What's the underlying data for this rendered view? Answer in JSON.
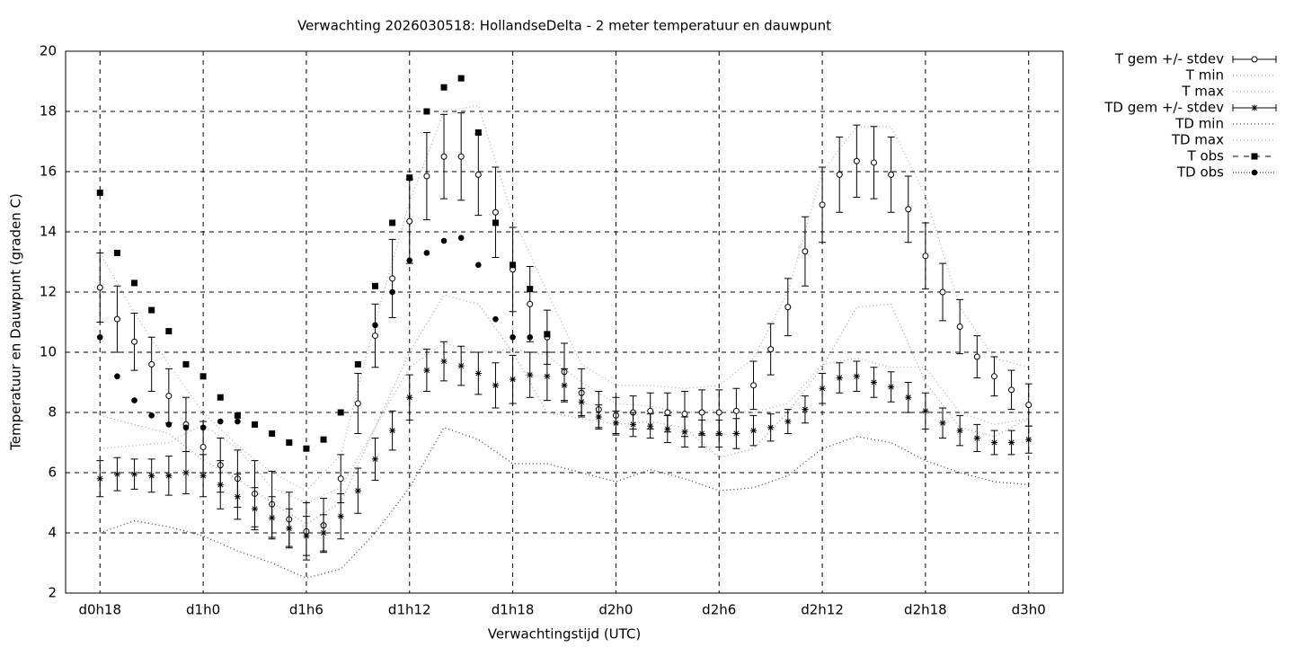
{
  "chart_data": {
    "type": "errorbar",
    "title": "Verwachting 2026030518: HollandseDelta - 2 meter temperatuur en dauwpunt",
    "xlabel": "Verwachtingstijd (UTC)",
    "ylabel": "Temperatuur en Dauwpunt (graden C)",
    "xlim": [
      16,
      74
    ],
    "ylim": [
      2,
      20
    ],
    "xticks": [
      {
        "value": 18,
        "label": "d0h18"
      },
      {
        "value": 24,
        "label": "d1h0"
      },
      {
        "value": 30,
        "label": "d1h6"
      },
      {
        "value": 36,
        "label": "d1h12"
      },
      {
        "value": 42,
        "label": "d1h18"
      },
      {
        "value": 48,
        "label": "d2h0"
      },
      {
        "value": 54,
        "label": "d2h6"
      },
      {
        "value": 60,
        "label": "d2h12"
      },
      {
        "value": 66,
        "label": "d2h18"
      },
      {
        "value": 72,
        "label": "d3h0"
      }
    ],
    "yticks": [
      2,
      4,
      6,
      8,
      10,
      12,
      14,
      16,
      18,
      20
    ],
    "grid": true,
    "legend": "outside-right",
    "series": [
      {
        "name": "T gem +/- stdev",
        "kind": "errorbar",
        "marker": "open-circle",
        "color": "#000000",
        "x": [
          18,
          19,
          20,
          21,
          22,
          23,
          24,
          25,
          26,
          27,
          28,
          29,
          30,
          31,
          32,
          33,
          34,
          35,
          36,
          37,
          38,
          39,
          40,
          41,
          42,
          43,
          44,
          45,
          46,
          47,
          48,
          49,
          50,
          51,
          52,
          53,
          54,
          55,
          56,
          57,
          58,
          59,
          60,
          61,
          62,
          63,
          64,
          65,
          66,
          67,
          68,
          69,
          70,
          71,
          72
        ],
        "values": [
          12.15,
          11.1,
          10.35,
          9.6,
          8.55,
          7.6,
          6.85,
          6.25,
          5.8,
          5.3,
          4.95,
          4.45,
          4.05,
          4.25,
          5.8,
          8.3,
          10.55,
          12.45,
          14.35,
          15.85,
          16.5,
          16.5,
          15.9,
          14.65,
          12.75,
          11.6,
          10.5,
          9.35,
          8.65,
          8.1,
          7.9,
          8.0,
          8.05,
          8.0,
          7.95,
          8.0,
          8.0,
          8.05,
          8.9,
          10.1,
          11.5,
          13.35,
          14.9,
          15.9,
          16.35,
          16.3,
          15.9,
          14.75,
          13.2,
          12.0,
          10.85,
          9.85,
          9.2,
          8.75,
          8.25
        ],
        "errors": [
          1.15,
          1.1,
          0.95,
          0.9,
          0.9,
          0.9,
          0.85,
          0.9,
          0.95,
          1.1,
          1.1,
          0.9,
          0.95,
          0.9,
          0.8,
          1.0,
          1.05,
          1.3,
          1.4,
          1.45,
          1.4,
          1.45,
          1.35,
          1.5,
          1.4,
          1.25,
          0.9,
          0.95,
          0.8,
          0.6,
          0.6,
          0.55,
          0.6,
          0.65,
          0.75,
          0.75,
          0.75,
          0.75,
          0.8,
          0.85,
          0.95,
          1.15,
          1.25,
          1.25,
          1.2,
          1.2,
          1.25,
          1.1,
          1.1,
          0.95,
          0.9,
          0.7,
          0.65,
          0.65,
          0.7
        ]
      },
      {
        "name": "T min",
        "kind": "line",
        "color": "#a0a0a0",
        "x": [
          18,
          20,
          22,
          24,
          26,
          28,
          30,
          32,
          34,
          36,
          38,
          40,
          42,
          44,
          46,
          48,
          50,
          52,
          54,
          56,
          58,
          60,
          62,
          64,
          66,
          68,
          70,
          72
        ],
        "values": [
          7.9,
          7.6,
          7.3,
          6.4,
          5.8,
          5.0,
          4.3,
          5.0,
          7.5,
          10.0,
          11.9,
          11.6,
          10.0,
          8.0,
          7.8,
          7.6,
          7.7,
          7.5,
          6.5,
          6.8,
          8.0,
          9.5,
          11.5,
          11.6,
          9.0,
          7.5,
          7.2,
          7.8
        ]
      },
      {
        "name": "T max",
        "kind": "line",
        "color": "#b0b0b0",
        "x": [
          18,
          20,
          22,
          24,
          26,
          28,
          30,
          32,
          34,
          36,
          38,
          40,
          42,
          44,
          46,
          48,
          50,
          52,
          54,
          56,
          58,
          60,
          62,
          64,
          66,
          68,
          70,
          72
        ],
        "values": [
          13.3,
          11.3,
          9.6,
          8.0,
          6.9,
          6.0,
          5.4,
          6.6,
          11.0,
          15.0,
          18.0,
          18.2,
          14.5,
          12.0,
          9.6,
          8.9,
          8.9,
          8.8,
          8.9,
          9.8,
          12.0,
          16.0,
          17.5,
          17.5,
          15.2,
          11.5,
          9.8,
          9.5
        ]
      },
      {
        "name": "TD gem +/- stdev",
        "kind": "errorbar",
        "marker": "star",
        "color": "#000000",
        "x": [
          18,
          19,
          20,
          21,
          22,
          23,
          24,
          25,
          26,
          27,
          28,
          29,
          30,
          31,
          32,
          33,
          34,
          35,
          36,
          37,
          38,
          39,
          40,
          41,
          42,
          43,
          44,
          45,
          46,
          47,
          48,
          49,
          50,
          51,
          52,
          53,
          54,
          55,
          56,
          57,
          58,
          59,
          60,
          61,
          62,
          63,
          64,
          65,
          66,
          67,
          68,
          69,
          70,
          71,
          72
        ],
        "values": [
          5.8,
          5.95,
          5.95,
          5.9,
          5.9,
          6.0,
          5.9,
          5.6,
          5.2,
          4.8,
          4.5,
          4.15,
          3.9,
          4.0,
          4.55,
          5.4,
          6.45,
          7.4,
          8.5,
          9.4,
          9.7,
          9.55,
          9.3,
          8.9,
          9.1,
          9.25,
          9.2,
          8.9,
          8.35,
          7.85,
          7.65,
          7.6,
          7.55,
          7.45,
          7.35,
          7.3,
          7.3,
          7.3,
          7.4,
          7.5,
          7.7,
          8.1,
          8.8,
          9.15,
          9.2,
          9.0,
          8.85,
          8.5,
          8.05,
          7.65,
          7.4,
          7.15,
          7.0,
          7.0,
          7.1
        ],
        "errors": [
          0.6,
          0.55,
          0.5,
          0.55,
          0.65,
          0.7,
          0.7,
          0.8,
          0.75,
          0.7,
          0.7,
          0.65,
          0.65,
          0.6,
          0.75,
          0.75,
          0.7,
          0.65,
          0.75,
          0.7,
          0.65,
          0.65,
          0.7,
          0.75,
          0.8,
          0.75,
          0.8,
          0.55,
          0.45,
          0.4,
          0.4,
          0.4,
          0.4,
          0.45,
          0.5,
          0.45,
          0.45,
          0.5,
          0.5,
          0.45,
          0.4,
          0.45,
          0.5,
          0.5,
          0.5,
          0.5,
          0.5,
          0.5,
          0.6,
          0.5,
          0.5,
          0.45,
          0.4,
          0.4,
          0.45
        ]
      },
      {
        "name": "TD min",
        "kind": "line",
        "color": "#444444",
        "x": [
          18,
          20,
          22,
          24,
          26,
          28,
          30,
          32,
          34,
          36,
          38,
          40,
          42,
          44,
          46,
          48,
          50,
          52,
          54,
          56,
          58,
          60,
          62,
          64,
          66,
          68,
          70,
          72
        ],
        "values": [
          4.0,
          4.4,
          4.2,
          3.9,
          3.4,
          3.0,
          2.5,
          2.8,
          4.0,
          5.5,
          7.5,
          7.1,
          6.3,
          6.3,
          6.0,
          5.7,
          6.1,
          5.8,
          5.4,
          5.5,
          5.9,
          6.8,
          7.2,
          7.0,
          6.4,
          6.0,
          5.7,
          5.6
        ]
      },
      {
        "name": "TD max",
        "kind": "line",
        "color": "#b0b0b0",
        "x": [
          18,
          20,
          22,
          24,
          26,
          28,
          30,
          32,
          34,
          36,
          38,
          40,
          42,
          44,
          46,
          48,
          50,
          52,
          54,
          56,
          58,
          60,
          62,
          64,
          66,
          68,
          70,
          72
        ],
        "values": [
          6.8,
          6.9,
          7.0,
          7.6,
          6.8,
          5.5,
          5.0,
          5.5,
          7.5,
          9.5,
          10.3,
          10.0,
          10.1,
          9.9,
          9.0,
          8.3,
          8.2,
          8.0,
          8.1,
          8.0,
          8.3,
          9.6,
          9.8,
          9.5,
          9.5,
          8.0,
          7.6,
          7.8
        ]
      },
      {
        "name": "T obs",
        "kind": "points",
        "marker": "square",
        "color": "#000000",
        "x": [
          18,
          19,
          20,
          21,
          22,
          23,
          24,
          25,
          26,
          27,
          28,
          29,
          30,
          31,
          32,
          33,
          34,
          35,
          36,
          37,
          38,
          39,
          40,
          41,
          42,
          43,
          44
        ],
        "values": [
          15.3,
          13.3,
          12.3,
          11.4,
          10.7,
          9.6,
          9.2,
          8.5,
          7.9,
          7.6,
          7.3,
          7.0,
          6.8,
          7.1,
          8.0,
          9.6,
          12.2,
          14.3,
          15.8,
          18.0,
          18.8,
          19.1,
          17.3,
          14.3,
          12.9,
          12.1,
          10.6
        ]
      },
      {
        "name": "TD obs",
        "kind": "points",
        "marker": "dot",
        "color": "#000000",
        "x": [
          18,
          19,
          20,
          21,
          22,
          23,
          24,
          25,
          26,
          34,
          35,
          36,
          37,
          38,
          39,
          40,
          41,
          42,
          43
        ],
        "values": [
          10.5,
          9.2,
          8.4,
          7.9,
          7.6,
          7.5,
          7.5,
          7.7,
          7.7,
          10.9,
          12.0,
          13.05,
          13.3,
          13.7,
          13.8,
          12.9,
          11.1,
          10.5,
          10.5
        ]
      }
    ]
  }
}
